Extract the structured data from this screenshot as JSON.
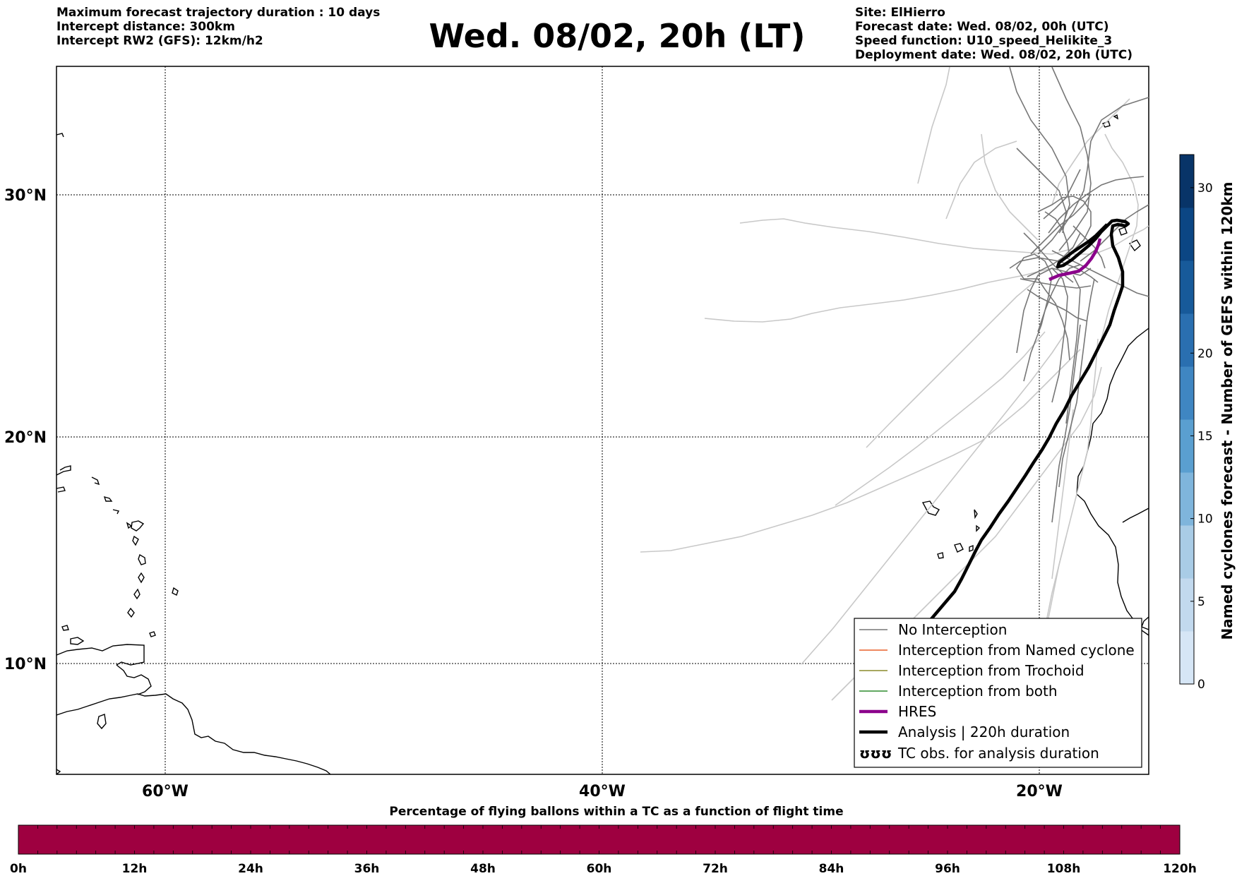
{
  "header_left": [
    "Maximum forecast trajectory duration : 10 days",
    "Intercept distance: 300km",
    "Intercept RW2 (GFS):  12km/h2"
  ],
  "title": "Wed. 08/02, 20h (LT)",
  "header_right": [
    "Site: ElHierro",
    "Forecast date: Wed. 08/02, 00h (UTC)",
    "Speed function: U10_speed_Helikite_3",
    "Deployment date: Wed. 08/02, 20h (UTC)"
  ],
  "map": {
    "lat_labels": [
      "30°N",
      "20°N",
      "10°N"
    ],
    "lon_labels": [
      "60°W",
      "40°W",
      "20°W"
    ]
  },
  "legend": {
    "items": [
      {
        "label": "No Interception",
        "color": "#777777"
      },
      {
        "label": "Interception from Named cyclone",
        "color": "#e8602c"
      },
      {
        "label": "Interception from Trochoid",
        "color": "#8a8a2a"
      },
      {
        "label": "Interception from both",
        "color": "#2e8b2e"
      },
      {
        "label": "HRES",
        "color": "#8b008b"
      },
      {
        "label": "Analysis | 220h duration",
        "color": "#000000"
      },
      {
        "label": "TC obs. for analysis duration",
        "color": "#000000"
      }
    ],
    "tc_symbol": "ʊʊʊ"
  },
  "colorbar": {
    "label": "Named cyclones forecast - Number of GEFS within 120km",
    "ticks": [
      "0",
      "5",
      "10",
      "15",
      "20",
      "30"
    ],
    "colors": [
      "#d6e6f6",
      "#c2d9ee",
      "#a9cce6",
      "#7fb5dc",
      "#5a9fd0",
      "#3f86c2",
      "#2a6fb0",
      "#175a9a",
      "#0b4684",
      "#083468"
    ]
  },
  "percentage_bar": {
    "title": "Percentage of flying ballons within a TC as a function of flight time",
    "ticks": [
      "0h",
      "12h",
      "24h",
      "36h",
      "48h",
      "60h",
      "72h",
      "84h",
      "96h",
      "108h",
      "120h"
    ],
    "color": "#9e0040"
  }
}
